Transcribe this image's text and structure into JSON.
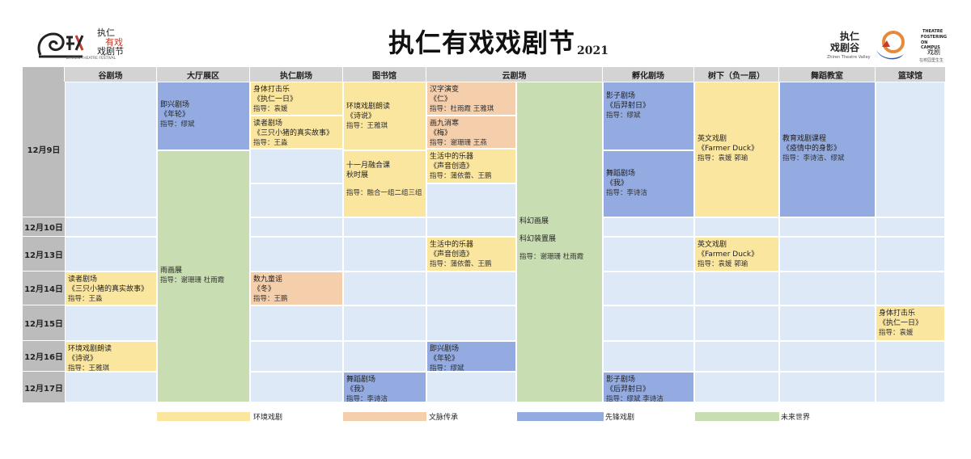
{
  "header": {
    "title": "执仁有戏戏剧节",
    "year": "2021",
    "left_logo": {
      "line1": "执仁",
      "line2": "有戏",
      "line3": "戏剧节",
      "sub": "ZHIREN THEATRE FESTIVAL"
    },
    "right_logo": {
      "name1": "执仁",
      "name2": "戏剧谷",
      "sub": "Zhiren Theatre Valley",
      "theatre_lines": [
        "THEATRE",
        "FOSTERING",
        "ON CAMPUS"
      ],
      "cn": "戏剧",
      "cn2": "在校园里生生"
    }
  },
  "columns": [
    "谷剧场",
    "大厅展区",
    "执仁剧场",
    "图书馆",
    "云剧场",
    "孵化剧场",
    "树下（负一层）",
    "舞蹈教室",
    "篮球馆"
  ],
  "rows": [
    "12月9日",
    "12月10日",
    "12月13日",
    "12月14日",
    "12月15日",
    "12月16日",
    "12月17日"
  ],
  "events": {
    "dating_improv": {
      "title": "即兴剧场",
      "work": "《年轮》",
      "director": "指导：缪斌"
    },
    "dating_rain": {
      "title": "雨画展",
      "director": "指导：谢珊珊 杜雨霞"
    },
    "zhiren_body": {
      "title": "身体打击乐",
      "work": "《执仁一日》",
      "director": "指导：袁媛"
    },
    "zhiren_reader": {
      "title": "读者剧场",
      "work": "《三只小猪的真实故事》",
      "director": "指导：王淼"
    },
    "zhiren_nine": {
      "title": "数九童谣",
      "work": "《冬》",
      "director": "指导：王鹏"
    },
    "lib_env": {
      "title": "环境戏剧朗读",
      "work": "《诗说》",
      "director": "指导：王雅琪"
    },
    "lib_nov": {
      "title": "十一月融合课",
      "work": "秋时展",
      "director": "指导：融合一组二组三组"
    },
    "lib_dance": {
      "title": "舞蹈剧场",
      "work": "《我》",
      "director": "指导：李诗洁"
    },
    "cloud_han": {
      "title": "汉字演变",
      "work": "《仁》",
      "director": "指导：杜雨霞 王雅琪"
    },
    "cloud_hua": {
      "title": "画九消寒",
      "work": "《梅》",
      "director": "指导：谢珊珊 王燕"
    },
    "cloud_music1": {
      "title": "生活中的乐器",
      "work": "《声音创造》",
      "director": "指导：蒲依蕾、王鹏"
    },
    "cloud_music2": {
      "title": "生活中的乐器",
      "work": "《声音创造》",
      "director": "指导：蒲依蕾、王鹏"
    },
    "cloud_improv": {
      "title": "即兴剧场",
      "work": "《年轮》",
      "director": "指导：缪斌"
    },
    "cloud_scifi": {
      "title": "科幻画展",
      "work": "科幻装置展",
      "director": "指导：谢珊珊 杜雨霞"
    },
    "inc_shadow1": {
      "title": "影子剧场",
      "work": "《后羿射日》",
      "director": "指导：缪斌"
    },
    "inc_dance": {
      "title": "舞蹈剧场",
      "work": "《我》",
      "director": "指导：李诗洁"
    },
    "inc_shadow2": {
      "title": "影子剧场",
      "work": "《后羿射日》",
      "director": "指导：缪斌 李诗洁"
    },
    "tree_eng1": {
      "title": "英文戏剧",
      "work": "《Farmer Duck》",
      "director": "指导：袁媛 郭瑜"
    },
    "tree_eng2": {
      "title": "英文戏剧",
      "work": "《Farmer Duck》",
      "director": "指导：袁媛 郭瑜"
    },
    "dance_course": {
      "title": "教育戏剧课程",
      "work": "《疫情中的身影》",
      "director": "指导：李诗洁、缪斌"
    },
    "gym_body": {
      "title": "身体打击乐",
      "work": "《执仁一日》",
      "director": "指导：袁媛"
    },
    "gu_reader": {
      "title": "读者剧场",
      "work": "《三只小猪的真实故事》",
      "director": "指导：王淼"
    },
    "gu_env": {
      "title": "环境戏剧朗读",
      "work": "《诗说》",
      "director": "指导：王雅琪"
    }
  },
  "legend": [
    "环境戏剧",
    "文脉传承",
    "先锋戏剧",
    "未来世界"
  ],
  "colors": {
    "env": "#fbe6a0",
    "culture": "#f5cfab",
    "pioneer": "#93abe0",
    "future": "#c9ddb3",
    "empty": "#dde9f7",
    "header": "#d3d3d3",
    "logo_red": "#c63a2b",
    "logo_blue": "#2f5aa8",
    "logo_orange": "#e7893a"
  }
}
